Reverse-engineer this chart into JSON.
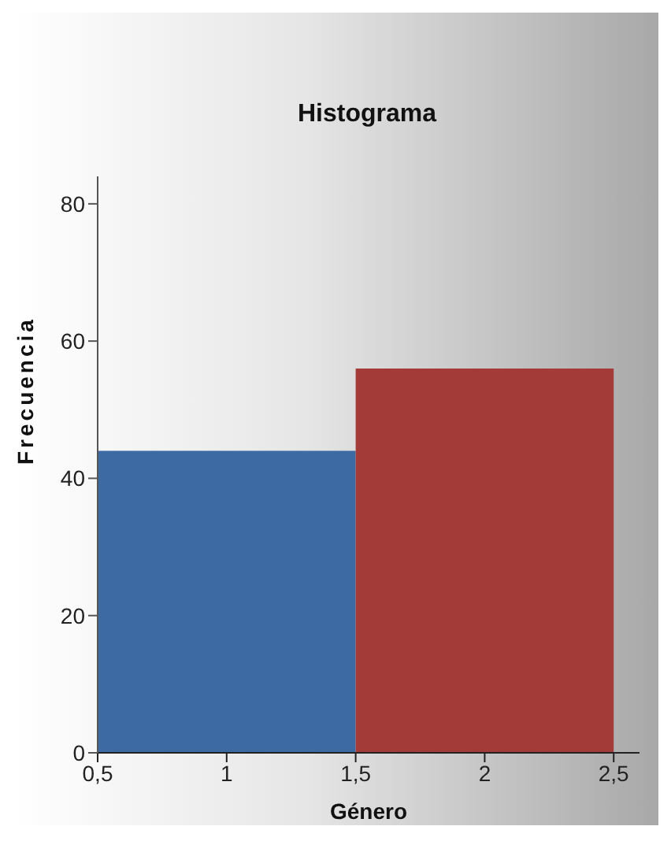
{
  "chart_data": {
    "type": "histogram",
    "title": "Histograma",
    "xlabel": "Género",
    "ylabel": "Frecuencia",
    "bins": [
      0.5,
      1.5,
      2.5
    ],
    "values": [
      44,
      56
    ],
    "colors": [
      "#3d6aa3",
      "#a33b39"
    ],
    "xlim": [
      0.5,
      2.6
    ],
    "xticks": [
      {
        "value": 0.5,
        "label": "0,5"
      },
      1,
      {
        "value": 1.5,
        "label": "1,5"
      },
      2,
      {
        "value": 2.5,
        "label": "2,5"
      }
    ],
    "ylim": [
      0,
      84
    ],
    "yticks": [
      0,
      20,
      40,
      60,
      80
    ],
    "grid": false
  }
}
